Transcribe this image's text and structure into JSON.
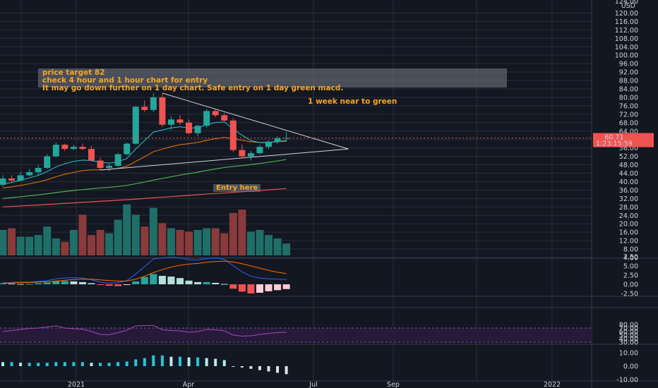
{
  "annotations": {
    "note_lines": [
      "price target 82",
      "check 4 hour and 1 hour chart for entry",
      "It may go down further on 1 day chart. Safe entry on 1 day green macd."
    ],
    "week_note": "1 week near to green",
    "entry_note": "Entry here"
  },
  "price_axis": {
    "currency": "USD",
    "ticks": [
      "4.00",
      "8.00",
      "12.00",
      "16.00",
      "20.00",
      "24.00",
      "28.00",
      "32.00",
      "36.00",
      "40.00",
      "44.00",
      "48.00",
      "52.00",
      "56.00",
      "60.00",
      "64.00",
      "68.00",
      "72.00",
      "76.00",
      "80.00",
      "84.00",
      "88.00",
      "92.00",
      "96.00",
      "100.00",
      "104.00",
      "108.00",
      "112.00",
      "116.00",
      "120.00"
    ],
    "top_partial": "124.00",
    "last_price": "60.71",
    "countdown": "1:23:15:59"
  },
  "macd_axis": {
    "ticks": [
      "-2.50",
      "0.00",
      "2.50",
      "5.00",
      "7.50"
    ]
  },
  "rsi_axis": {
    "ticks": [
      "30.00",
      "40.00",
      "50.00",
      "60.00",
      "70.00",
      "80.00"
    ]
  },
  "osc_axis": {
    "ticks": [
      "-10.00",
      "0.00",
      "10.00"
    ]
  },
  "time_axis": {
    "labels": [
      "2021",
      "Apr",
      "Jul",
      "Sep",
      "2022"
    ]
  },
  "colors": {
    "background": "#131722",
    "up": "#26a69a",
    "down": "#ef5350",
    "accent": "#f5a623",
    "rsi_band": "#2a1a3d",
    "rsi_line": "#9c27b0"
  },
  "chart_data": {
    "type": "candlestick",
    "timeframe": "1 week",
    "candles": [
      [
        38.5,
        43.0,
        37.5,
        41.5
      ],
      [
        41.5,
        43.0,
        39.5,
        40.5
      ],
      [
        40.5,
        44.5,
        40.0,
        43.0
      ],
      [
        43.0,
        46.0,
        42.5,
        44.5
      ],
      [
        44.5,
        48.0,
        43.0,
        46.5
      ],
      [
        46.5,
        53.0,
        46.0,
        52.0
      ],
      [
        52.0,
        58.5,
        51.5,
        57.5
      ],
      [
        57.5,
        58.0,
        54.5,
        55.5
      ],
      [
        55.5,
        57.5,
        55.0,
        56.5
      ],
      [
        56.5,
        58.0,
        55.0,
        55.5
      ],
      [
        55.5,
        57.0,
        49.5,
        50.0
      ],
      [
        50.0,
        51.5,
        45.5,
        46.5
      ],
      [
        46.5,
        48.5,
        45.0,
        47.5
      ],
      [
        47.5,
        53.5,
        47.0,
        53.0
      ],
      [
        53.0,
        58.5,
        52.5,
        58.0
      ],
      [
        58.0,
        76.0,
        57.5,
        75.5
      ],
      [
        75.5,
        78.5,
        73.0,
        74.0
      ],
      [
        74.0,
        82.0,
        73.0,
        80.0
      ],
      [
        80.0,
        81.5,
        66.0,
        67.0
      ],
      [
        67.0,
        71.0,
        64.5,
        69.5
      ],
      [
        69.5,
        71.5,
        67.0,
        68.0
      ],
      [
        68.0,
        69.5,
        62.5,
        63.0
      ],
      [
        63.0,
        67.0,
        61.5,
        66.5
      ],
      [
        66.5,
        74.5,
        65.5,
        73.5
      ],
      [
        73.5,
        74.5,
        70.5,
        71.5
      ],
      [
        71.5,
        72.5,
        68.5,
        69.0
      ],
      [
        69.0,
        70.0,
        54.0,
        55.0
      ],
      [
        55.0,
        57.5,
        51.0,
        52.0
      ],
      [
        52.0,
        54.5,
        50.0,
        53.5
      ],
      [
        53.5,
        57.5,
        53.0,
        56.5
      ],
      [
        56.5,
        59.5,
        55.5,
        59.0
      ],
      [
        59.0,
        61.5,
        58.0,
        60.5
      ],
      [
        60.5,
        63.5,
        59.0,
        60.71
      ]
    ],
    "volume": [
      15,
      16,
      11,
      11,
      12,
      17,
      10,
      8,
      15,
      24,
      12,
      15,
      13,
      21,
      30,
      24,
      17,
      28,
      19,
      16,
      15,
      14,
      15,
      16,
      16,
      13,
      25,
      27,
      14,
      15,
      12,
      10,
      7
    ],
    "ema_fast": [
      38.8,
      39.6,
      40.6,
      41.8,
      43.0,
      44.8,
      47.0,
      48.5,
      49.6,
      50.2,
      50.0,
      49.2,
      48.8,
      49.4,
      51.0,
      55.5,
      59.5,
      63.5,
      64.5,
      65.5,
      66.0,
      65.5,
      65.5,
      67.0,
      68.0,
      68.3,
      65.0,
      62.0,
      59.5,
      58.5,
      58.5,
      59.0,
      59.5
    ],
    "ema_slow": [
      37.0,
      37.5,
      38.2,
      39.0,
      39.8,
      40.9,
      42.3,
      43.5,
      44.4,
      45.2,
      45.6,
      45.6,
      45.8,
      46.3,
      47.3,
      49.6,
      51.8,
      54.2,
      55.4,
      56.6,
      57.5,
      58.0,
      58.6,
      59.6,
      60.4,
      61.0,
      60.4,
      59.6,
      58.9,
      58.6,
      58.7,
      58.9,
      59.2
    ],
    "sma_a": [
      32.0,
      32.4,
      32.8,
      33.3,
      33.7,
      34.2,
      34.8,
      35.3,
      35.8,
      36.2,
      36.6,
      37.0,
      37.3,
      37.7,
      38.2,
      39.0,
      39.8,
      40.7,
      41.5,
      42.3,
      43.1,
      43.8,
      44.5,
      45.3,
      46.0,
      46.7,
      47.2,
      47.6,
      48.1,
      48.6,
      49.2,
      49.8,
      50.5
    ],
    "sma_b": [
      28.0,
      28.2,
      28.5,
      28.7,
      28.9,
      29.2,
      29.4,
      29.7,
      29.9,
      30.2,
      30.4,
      30.7,
      30.9,
      31.2,
      31.4,
      31.7,
      32.0,
      32.3,
      32.6,
      32.9,
      33.2,
      33.5,
      33.8,
      34.1,
      34.4,
      34.6,
      34.9,
      35.2,
      35.5,
      35.8,
      36.1,
      36.4,
      36.7
    ],
    "trendlines": [
      {
        "from": [
          18,
          82.0
        ],
        "to": [
          39,
          55.5
        ]
      },
      {
        "from": [
          11,
          45.5
        ],
        "to": [
          39,
          55.5
        ]
      }
    ],
    "macd_hist": [
      0.3,
      0.2,
      0.1,
      0.1,
      0.3,
      0.5,
      0.9,
      0.9,
      0.8,
      0.6,
      0.3,
      -0.2,
      -0.4,
      -0.5,
      -0.2,
      0.8,
      2.0,
      2.8,
      2.3,
      2.1,
      1.7,
      1.0,
      0.6,
      0.6,
      0.4,
      0.1,
      -1.2,
      -2.0,
      -2.5,
      -2.3,
      -1.9,
      -1.6,
      -1.3
    ],
    "macd_line": [
      0.4,
      0.5,
      0.6,
      0.6,
      0.8,
      1.0,
      1.5,
      1.7,
      1.8,
      1.7,
      1.2,
      0.6,
      0.3,
      0.4,
      1.0,
      2.8,
      4.8,
      6.9,
      7.2,
      7.4,
      7.2,
      6.7,
      6.6,
      7.0,
      7.2,
      6.8,
      5.1,
      3.4,
      2.2,
      1.7,
      1.5,
      1.4,
      1.3
    ],
    "macd_signal": [
      0.3,
      0.4,
      0.5,
      0.5,
      0.6,
      0.7,
      0.9,
      1.1,
      1.3,
      1.4,
      1.4,
      1.2,
      1.0,
      0.9,
      0.9,
      1.4,
      2.2,
      3.2,
      4.0,
      4.7,
      5.2,
      5.5,
      5.7,
      6.0,
      6.2,
      6.3,
      6.1,
      5.6,
      5.0,
      4.4,
      3.8,
      3.3,
      2.9
    ],
    "rsi": [
      60,
      63,
      66,
      69,
      70,
      73,
      76,
      70,
      68,
      67,
      60,
      52,
      51,
      57,
      64,
      76,
      77,
      77,
      65,
      63,
      62,
      58,
      60,
      66,
      65,
      62,
      50,
      47,
      48,
      52,
      55,
      57,
      58
    ],
    "osc": [
      3,
      3,
      2.5,
      2.5,
      2.5,
      2.5,
      3,
      3,
      3,
      3,
      2.5,
      2.5,
      2.5,
      3,
      3.5,
      5,
      6,
      8,
      8,
      7,
      7,
      6.5,
      6.5,
      6,
      5.5,
      4.5,
      0,
      -1,
      -2,
      -3,
      -4,
      -5,
      -6
    ],
    "y_range": [
      0,
      124
    ],
    "grid": true
  }
}
